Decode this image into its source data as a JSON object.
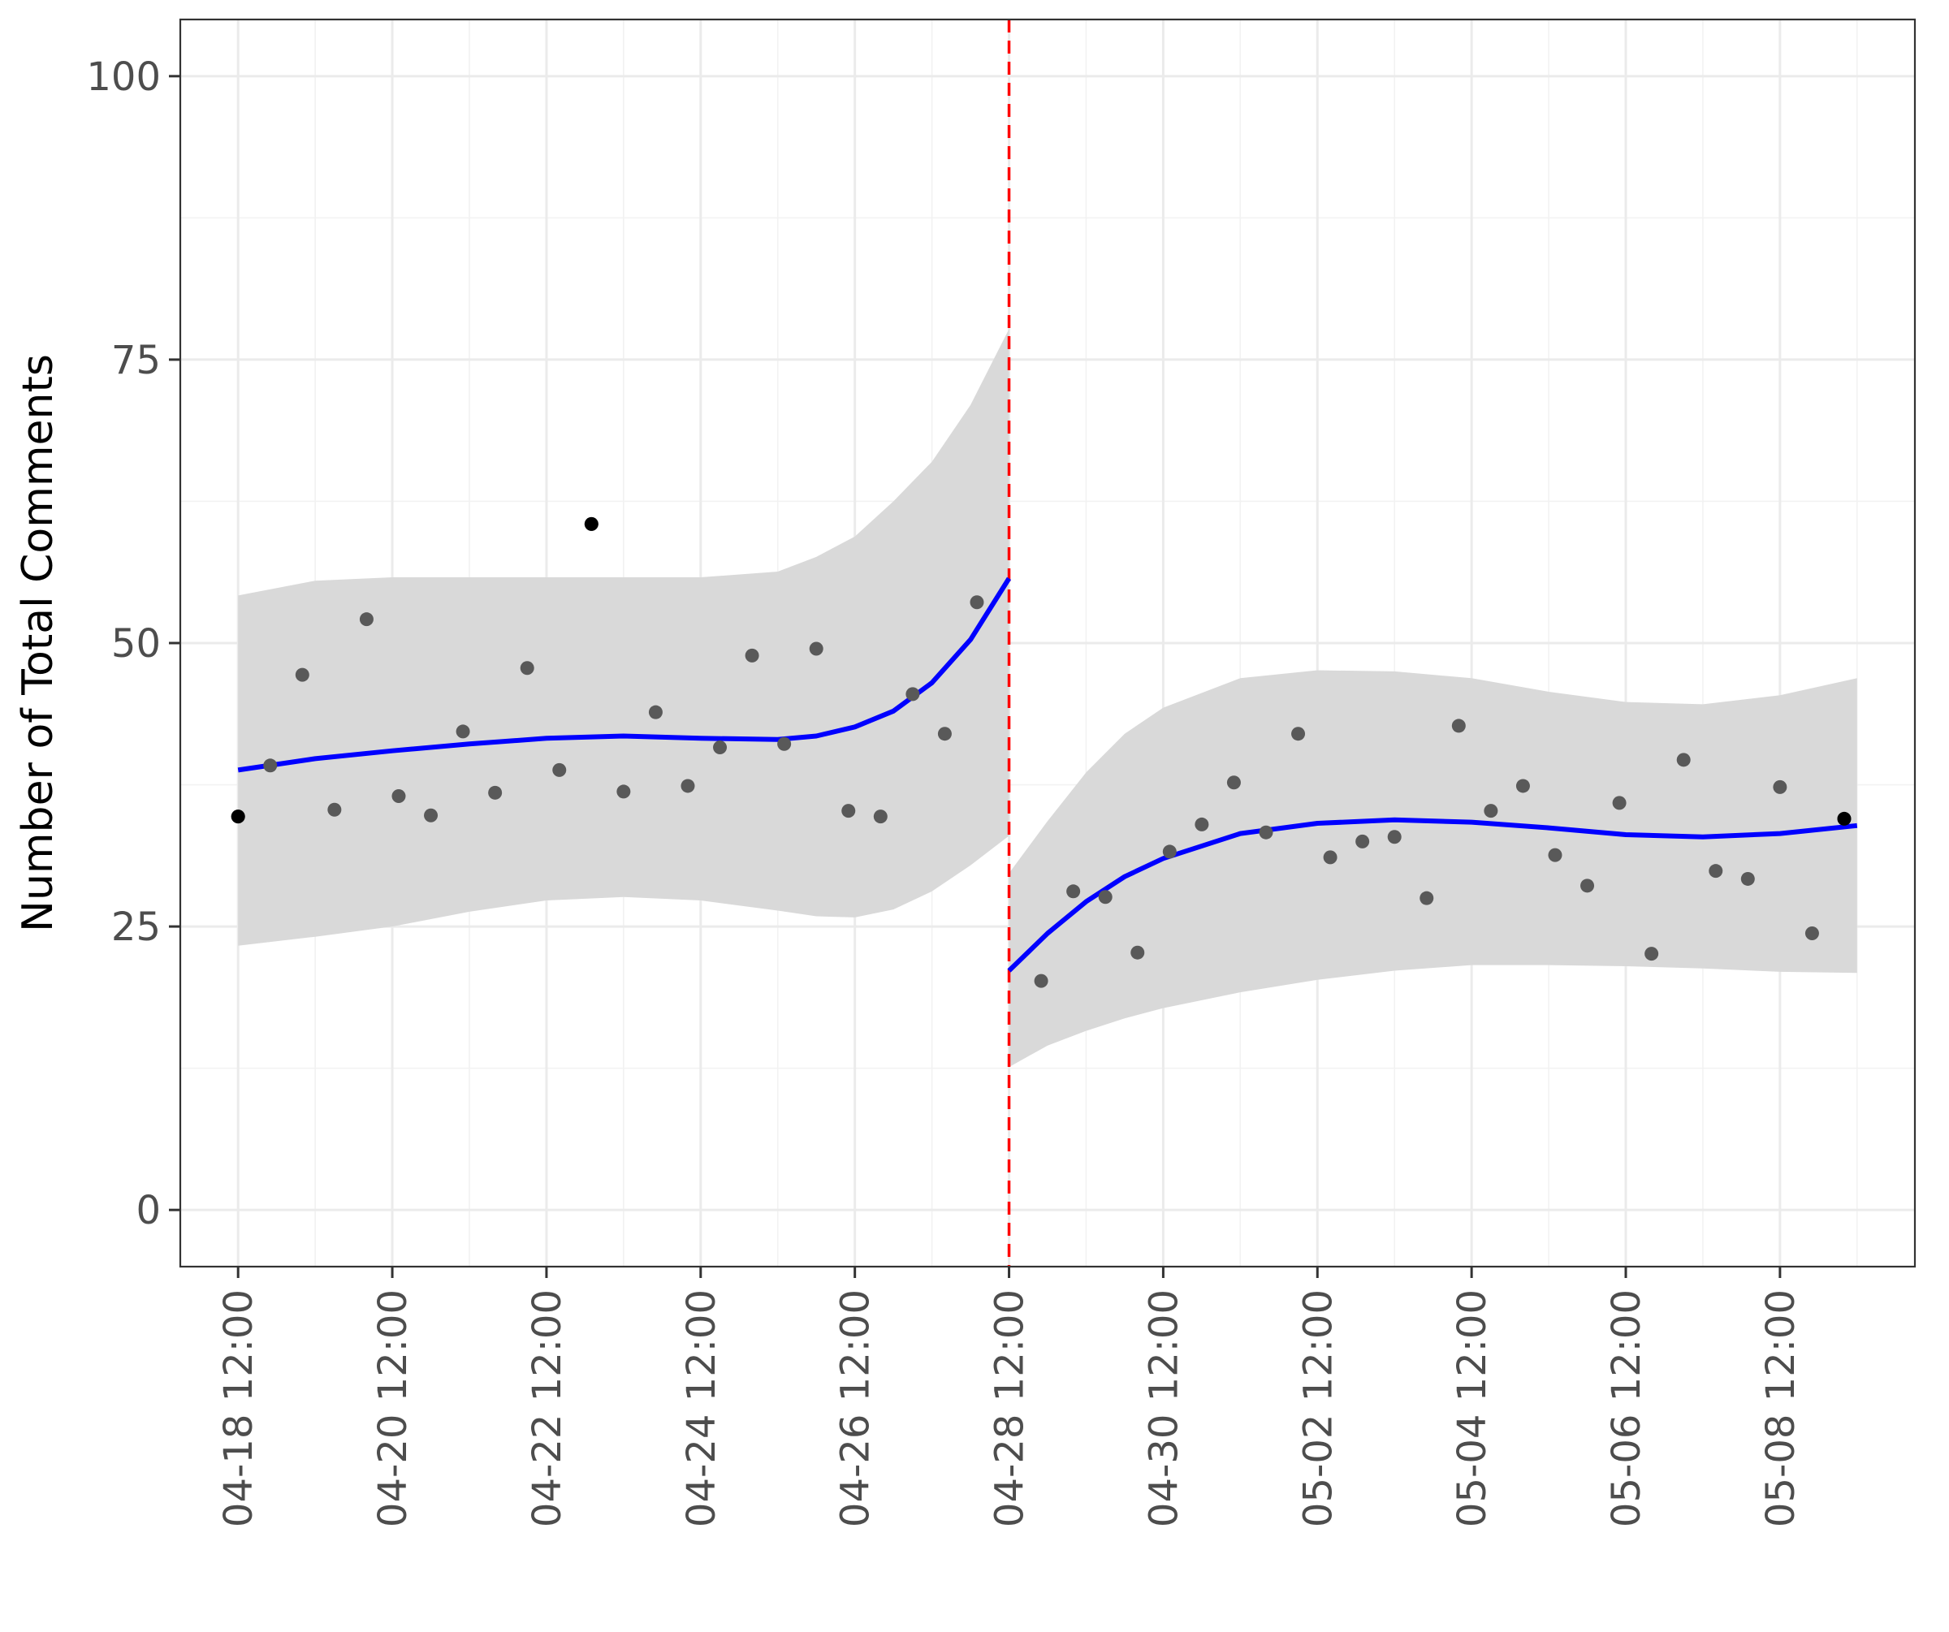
{
  "chart_data": {
    "type": "scatter",
    "title": "",
    "xlabel": "",
    "ylabel": "Number of Total Comments",
    "ylim": [
      -5,
      105
    ],
    "xlim": [
      "2024-04-17 18:00",
      "2024-05-10 06:00"
    ],
    "y_ticks": [
      0,
      25,
      50,
      75,
      100
    ],
    "y_tick_labels": [
      "0",
      "25",
      "50",
      "75",
      "100"
    ],
    "x_ticks": [
      "2024-04-18 12:00",
      "2024-04-20 12:00",
      "2024-04-22 12:00",
      "2024-04-24 12:00",
      "2024-04-26 12:00",
      "2024-04-28 12:00",
      "2024-04-30 12:00",
      "2024-05-02 12:00",
      "2024-05-04 12:00",
      "2024-05-06 12:00",
      "2024-05-08 12:00"
    ],
    "x_tick_labels": [
      "04-18 12:00",
      "04-20 12:00",
      "04-22 12:00",
      "04-24 12:00",
      "04-26 12:00",
      "04-28 12:00",
      "04-30 12:00",
      "05-02 12:00",
      "05-04 12:00",
      "05-06 12:00",
      "05-08 12:00"
    ],
    "grid": true,
    "cutoff": "2024-04-28 12:00",
    "series": [
      {
        "kind": "points",
        "color": "#595959",
        "x": [
          "2024-04-18 12:00",
          "2024-04-18 22:00",
          "2024-04-19 08:00",
          "2024-04-19 18:00",
          "2024-04-20 04:00",
          "2024-04-20 14:00",
          "2024-04-21 00:00",
          "2024-04-21 10:00",
          "2024-04-21 20:00",
          "2024-04-22 06:00",
          "2024-04-22 16:00",
          "2024-04-23 02:00",
          "2024-04-23 12:00",
          "2024-04-23 22:00",
          "2024-04-24 08:00",
          "2024-04-24 18:00",
          "2024-04-25 04:00",
          "2024-04-25 14:00",
          "2024-04-26 00:00",
          "2024-04-26 10:00",
          "2024-04-26 20:00",
          "2024-04-27 06:00",
          "2024-04-27 16:00",
          "2024-04-28 02:00",
          "2024-04-28 22:00",
          "2024-04-29 08:00",
          "2024-04-29 18:00",
          "2024-04-30 04:00",
          "2024-04-30 14:00",
          "2024-05-01 00:00",
          "2024-05-01 10:00",
          "2024-05-01 20:00",
          "2024-05-02 06:00",
          "2024-05-02 16:00",
          "2024-05-03 02:00",
          "2024-05-03 12:00",
          "2024-05-03 22:00",
          "2024-05-04 08:00",
          "2024-05-04 18:00",
          "2024-05-05 04:00",
          "2024-05-05 14:00",
          "2024-05-06 00:00",
          "2024-05-06 10:00",
          "2024-05-06 20:00",
          "2024-05-07 06:00",
          "2024-05-07 16:00",
          "2024-05-08 02:00",
          "2024-05-08 12:00",
          "2024-05-08 22:00",
          "2024-05-09 08:00"
        ],
        "y": [
          34.7,
          39.2,
          47.2,
          35.3,
          52.1,
          36.5,
          34.8,
          42.2,
          36.8,
          47.8,
          38.8,
          60.5,
          36.9,
          43.9,
          37.4,
          40.8,
          48.9,
          41.1,
          49.5,
          35.2,
          34.7,
          45.5,
          42.0,
          53.6,
          20.2,
          28.1,
          27.6,
          22.7,
          31.6,
          34.0,
          37.7,
          33.3,
          42.0,
          31.1,
          32.5,
          32.9,
          27.5,
          42.7,
          35.2,
          37.4,
          31.3,
          28.6,
          35.9,
          22.6,
          39.7,
          29.9,
          29.2,
          37.3,
          24.4,
          34.5
        ],
        "highlight": [
          {
            "x": "2024-04-18 12:00",
            "y": 34.7,
            "color": "#000000"
          },
          {
            "x": "2024-04-23 02:00",
            "y": 60.5,
            "color": "#000000"
          },
          {
            "x": "2024-05-09 08:00",
            "y": 34.5,
            "color": "#000000"
          }
        ]
      },
      {
        "kind": "smooth",
        "segment": "before",
        "color": "#0000ff",
        "band_color": "#d9d9d9",
        "x": [
          "2024-04-18 12:00",
          "2024-04-19 12:00",
          "2024-04-20 12:00",
          "2024-04-21 12:00",
          "2024-04-22 12:00",
          "2024-04-23 12:00",
          "2024-04-24 12:00",
          "2024-04-25 12:00",
          "2024-04-26 00:00",
          "2024-04-26 12:00",
          "2024-04-27 00:00",
          "2024-04-27 12:00",
          "2024-04-28 00:00",
          "2024-04-28 12:00"
        ],
        "y": [
          38.8,
          39.8,
          40.5,
          41.1,
          41.6,
          41.8,
          41.6,
          41.5,
          41.8,
          42.6,
          44.0,
          46.5,
          50.3,
          55.7
        ],
        "lower": [
          23.3,
          24.1,
          25.0,
          26.3,
          27.3,
          27.6,
          27.3,
          26.4,
          25.9,
          25.8,
          26.5,
          28.1,
          30.4,
          33.0
        ],
        "upper": [
          54.2,
          55.5,
          55.8,
          55.8,
          55.8,
          55.8,
          55.8,
          56.3,
          57.6,
          59.4,
          62.5,
          66.0,
          71.0,
          77.7
        ]
      },
      {
        "kind": "smooth",
        "segment": "after",
        "color": "#0000ff",
        "band_color": "#d9d9d9",
        "x": [
          "2024-04-28 12:00",
          "2024-04-29 00:00",
          "2024-04-29 12:00",
          "2024-04-30 00:00",
          "2024-04-30 12:00",
          "2024-05-01 12:00",
          "2024-05-02 12:00",
          "2024-05-03 12:00",
          "2024-05-04 12:00",
          "2024-05-05 12:00",
          "2024-05-06 12:00",
          "2024-05-07 12:00",
          "2024-05-08 12:00",
          "2024-05-09 12:00"
        ],
        "y": [
          21.1,
          24.4,
          27.2,
          29.4,
          31.0,
          33.2,
          34.1,
          34.4,
          34.2,
          33.7,
          33.1,
          32.9,
          33.2,
          33.9
        ],
        "lower": [
          12.6,
          14.5,
          15.8,
          16.9,
          17.8,
          19.2,
          20.3,
          21.1,
          21.6,
          21.6,
          21.5,
          21.3,
          21.0,
          20.9
        ],
        "upper": [
          29.7,
          34.3,
          38.6,
          42.0,
          44.3,
          46.9,
          47.6,
          47.5,
          46.9,
          45.7,
          44.8,
          44.6,
          45.4,
          46.9
        ]
      }
    ],
    "cutoff_line": {
      "color": "#ff0000",
      "style": "dashed"
    }
  }
}
